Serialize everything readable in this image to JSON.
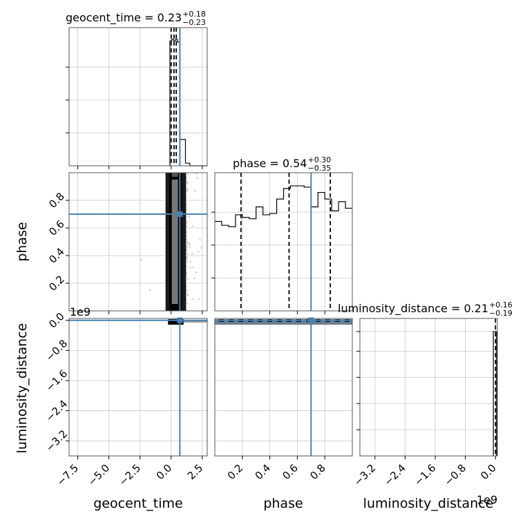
{
  "chart_data": {
    "type": "corner",
    "parameters": [
      "geocent_time",
      "phase",
      "luminosity_distance"
    ],
    "truths": {
      "geocent_time": 0.7,
      "phase": 0.7,
      "luminosity_distance": 0.0
    },
    "titles": [
      {
        "parameter": "geocent_time",
        "main": "geocent_time = 0.23",
        "plus": "+0.18",
        "minus": "−0.23"
      },
      {
        "parameter": "phase",
        "main": "phase = 0.54",
        "plus": "+0.30",
        "minus": "−0.35"
      },
      {
        "parameter": "luminosity_distance",
        "main": "luminosity_distance = 0.21",
        "plus": "+0.16",
        "minus": "−0.19"
      }
    ],
    "quantiles": {
      "geocent_time": [
        0.0,
        0.23,
        0.41
      ],
      "phase": [
        0.19,
        0.54,
        0.84
      ],
      "luminosity_distance": [
        0.02,
        0.21,
        0.37
      ]
    },
    "axes": {
      "geocent_time": {
        "range": [
          -8.2,
          2.9
        ],
        "ticks": [
          -7.5,
          -5.0,
          -2.5,
          0.0,
          2.5
        ],
        "labels": [
          "−7.5",
          "−5.0",
          "−2.5",
          "0.0",
          "2.5"
        ]
      },
      "phase": {
        "range": [
          0.0,
          1.0
        ],
        "ticks": [
          0.2,
          0.4,
          0.6,
          0.8
        ],
        "labels": [
          "0.2",
          "0.4",
          "0.6",
          "0.8"
        ]
      },
      "luminosity_distance": {
        "range": [
          -3.6,
          0.05
        ],
        "ticks": [
          -3.2,
          -2.4,
          -1.6,
          -0.8,
          0.0
        ],
        "labels": [
          "−3.2",
          "−2.4",
          "−1.6",
          "−0.8",
          "0.0"
        ],
        "offset": "1e9"
      }
    },
    "phase_hist": {
      "edges": [
        0.0,
        0.05,
        0.1,
        0.15,
        0.2,
        0.25,
        0.3,
        0.35,
        0.4,
        0.45,
        0.5,
        0.55,
        0.6,
        0.65,
        0.7,
        0.75,
        0.8,
        0.85,
        0.9,
        0.95,
        1.0
      ],
      "counts": [
        0.68,
        0.65,
        0.64,
        0.73,
        0.71,
        0.7,
        0.79,
        0.73,
        0.74,
        0.85,
        0.93,
        0.95,
        0.95,
        0.94,
        0.79,
        0.9,
        0.85,
        0.76,
        0.83,
        0.78
      ]
    },
    "geocent_hist": {
      "edges": [
        -0.1,
        0.05,
        0.2,
        0.35,
        0.5,
        0.7,
        0.85,
        1.0,
        1.15,
        1.5,
        2.9
      ],
      "counts": [
        0.95,
        0.96,
        0.95,
        0.96,
        0.94,
        0.2,
        0.2,
        0.2,
        0.02,
        0.0
      ]
    },
    "grid": true
  }
}
